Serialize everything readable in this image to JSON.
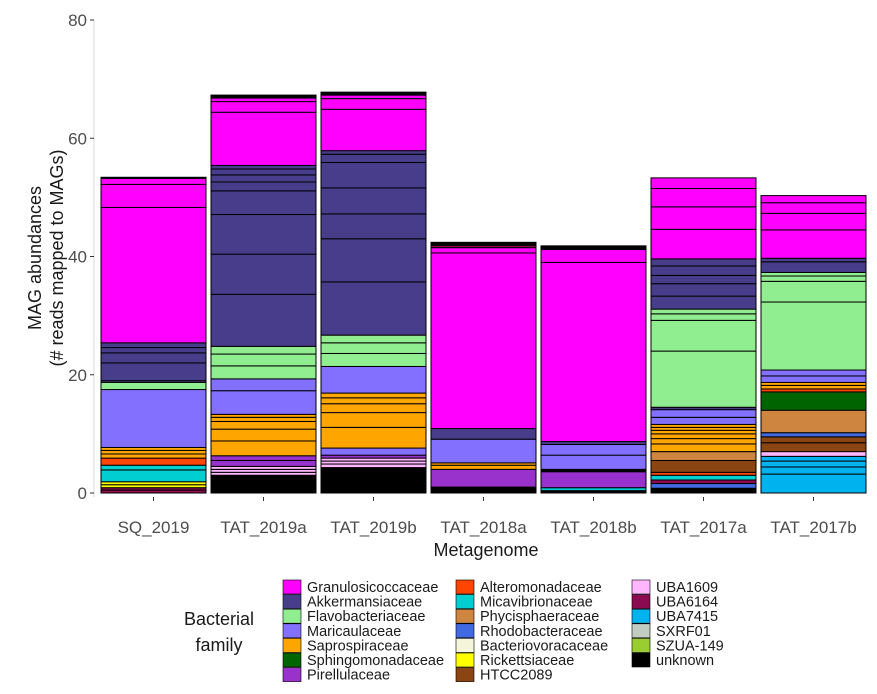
{
  "chart_data": {
    "type": "bar",
    "stacked": true,
    "xlabel": "Metagenome",
    "ylabel": [
      "MAG abundances",
      "(# reads mapped to MAGs)"
    ],
    "ylim": [
      0,
      80
    ],
    "yticks": [
      0,
      20,
      40,
      60,
      80
    ],
    "grid": false,
    "categories": [
      "SQ_2019",
      "TAT_2019a",
      "TAT_2019b",
      "TAT_2018a",
      "TAT_2018b",
      "TAT_2017a",
      "TAT_2017b"
    ],
    "legend": {
      "title": [
        "Bacterial",
        "family"
      ],
      "placement": "bottom",
      "entries": [
        {
          "name": "Granulosicoccaceae",
          "color": "#FF00FF"
        },
        {
          "name": "Akkermansiaceae",
          "color": "#483D8B"
        },
        {
          "name": "Flavobacteriaceae",
          "color": "#90EE90"
        },
        {
          "name": "Maricaulaceae",
          "color": "#8470FF"
        },
        {
          "name": "Saprospiraceae",
          "color": "#FFA500"
        },
        {
          "name": "Sphingomonadaceae",
          "color": "#006400"
        },
        {
          "name": "Pirellulaceae",
          "color": "#9932CC"
        },
        {
          "name": "Alteromonadaceae",
          "color": "#FF4500"
        },
        {
          "name": "Micavibrionaceae",
          "color": "#00CED1"
        },
        {
          "name": "Phycisphaeraceae",
          "color": "#CD853F"
        },
        {
          "name": "Rhodobacteraceae",
          "color": "#4169E1"
        },
        {
          "name": "Bacteriovoracaceae",
          "color": "#F5F5DC"
        },
        {
          "name": "Rickettsiaceae",
          "color": "#FFFF00"
        },
        {
          "name": "HTCC2089",
          "color": "#8B4513"
        },
        {
          "name": "UBA1609",
          "color": "#FFB6FF"
        },
        {
          "name": "UBA6164",
          "color": "#8B0A50"
        },
        {
          "name": "UBA7415",
          "color": "#00B2EE"
        },
        {
          "name": "SXRF01",
          "color": "#C1CDC1"
        },
        {
          "name": "SZUA-149",
          "color": "#9ACD32"
        },
        {
          "name": "unknown",
          "color": "#000000"
        }
      ]
    },
    "stacks": [
      [
        {
          "family": "UBA6164",
          "values": [
            0.5,
            0.4
          ]
        },
        {
          "family": "Rickettsiaceae",
          "values": [
            0.5,
            0.5
          ]
        },
        {
          "family": "Micavibrionaceae",
          "values": [
            2.0,
            0.8
          ]
        },
        {
          "family": "Alteromonadaceae",
          "values": [
            1.2
          ]
        },
        {
          "family": "Saprospiraceae",
          "values": [
            0.7,
            0.6,
            0.5
          ]
        },
        {
          "family": "Maricaulaceae",
          "values": [
            9.8
          ]
        },
        {
          "family": "Flavobacteriaceae",
          "values": [
            1.2
          ]
        },
        {
          "family": "Akkermansiaceae",
          "values": [
            0.3,
            3.0,
            1.7,
            0.9,
            0.8
          ]
        },
        {
          "family": "Granulosicoccaceae",
          "values": [
            22.9,
            3.9,
            1.0
          ]
        },
        {
          "family": "unknown",
          "values": [
            0.2
          ]
        }
      ],
      [
        {
          "family": "unknown",
          "values": [
            3.0
          ]
        },
        {
          "family": "UBA1609",
          "values": [
            0.5,
            0.5,
            0.5
          ]
        },
        {
          "family": "Pirellulaceae",
          "values": [
            1.0,
            0.8
          ]
        },
        {
          "family": "Saprospiraceae",
          "values": [
            2.5,
            2.0,
            1.3,
            0.7,
            0.5
          ]
        },
        {
          "family": "Maricaulaceae",
          "values": [
            4.0,
            2.0
          ]
        },
        {
          "family": "Flavobacteriaceae",
          "values": [
            2.2,
            2.0,
            1.3
          ]
        },
        {
          "family": "Akkermansiaceae",
          "values": [
            8.8,
            6.8,
            6.7,
            4.0,
            1.5,
            1.2,
            1.0,
            0.6
          ]
        },
        {
          "family": "Granulosicoccaceae",
          "values": [
            9.0,
            1.8,
            0.6
          ]
        },
        {
          "family": "unknown",
          "values": [
            0.5
          ]
        }
      ],
      [
        {
          "family": "unknown",
          "values": [
            4.3
          ]
        },
        {
          "family": "UBA1609",
          "values": [
            0.6,
            0.5,
            0.5
          ]
        },
        {
          "family": "Pirellulaceae",
          "values": [
            0.5
          ]
        },
        {
          "family": "Maricaulaceae",
          "values": [
            1.2
          ]
        },
        {
          "family": "Saprospiraceae",
          "values": [
            3.5,
            2.5,
            1.5,
            1.0,
            0.8
          ]
        },
        {
          "family": "Maricaulaceae",
          "values": [
            4.5
          ]
        },
        {
          "family": "Flavobacteriaceae",
          "values": [
            2.2,
            1.8,
            1.3
          ]
        },
        {
          "family": "Akkermansiaceae",
          "values": [
            9.0,
            7.3,
            4.2,
            4.4,
            4.3,
            1.4,
            0.6
          ]
        },
        {
          "family": "Granulosicoccaceae",
          "values": [
            7.0,
            1.8,
            0.6
          ]
        },
        {
          "family": "unknown",
          "values": [
            0.5
          ]
        }
      ],
      [
        {
          "family": "unknown",
          "values": [
            1.0
          ]
        },
        {
          "family": "Pirellulaceae",
          "values": [
            3.0
          ]
        },
        {
          "family": "Saprospiraceae",
          "values": [
            0.7,
            0.4
          ]
        },
        {
          "family": "Maricaulaceae",
          "values": [
            4.0
          ]
        },
        {
          "family": "Akkermansiaceae",
          "values": [
            1.8
          ]
        },
        {
          "family": "Granulosicoccaceae",
          "values": [
            29.7,
            0.9
          ]
        },
        {
          "family": "UBA6164",
          "values": [
            0.4
          ]
        },
        {
          "family": "unknown",
          "values": [
            0.5
          ]
        }
      ],
      [
        {
          "family": "unknown",
          "values": [
            0.4
          ]
        },
        {
          "family": "Micavibrionaceae",
          "values": [
            0.5
          ]
        },
        {
          "family": "Pirellulaceae",
          "values": [
            2.7
          ]
        },
        {
          "family": "unknown",
          "values": [
            0.4
          ]
        },
        {
          "family": "Maricaulaceae",
          "values": [
            2.4,
            1.8
          ]
        },
        {
          "family": "Akkermansiaceae",
          "values": [
            0.5
          ]
        },
        {
          "family": "Granulosicoccaceae",
          "values": [
            30.3,
            2.2
          ]
        },
        {
          "family": "unknown",
          "values": [
            0.6
          ]
        }
      ],
      [
        {
          "family": "unknown",
          "values": [
            0.8
          ]
        },
        {
          "family": "Rhodobacteraceae",
          "values": [
            0.8
          ]
        },
        {
          "family": "UBA6164",
          "values": [
            0.6
          ]
        },
        {
          "family": "Micavibrionaceae",
          "values": [
            0.8
          ]
        },
        {
          "family": "Alteromonadaceae",
          "values": [
            0.5
          ]
        },
        {
          "family": "HTCC2089",
          "values": [
            2.0
          ]
        },
        {
          "family": "Phycisphaeraceae",
          "values": [
            1.5
          ]
        },
        {
          "family": "Saprospiraceae",
          "values": [
            1.3,
            0.9,
            0.8,
            0.6,
            0.5,
            0.5
          ]
        },
        {
          "family": "Maricaulaceae",
          "values": [
            1.2,
            1.3
          ]
        },
        {
          "family": "Akkermansiaceae",
          "values": [
            0.4
          ]
        },
        {
          "family": "Flavobacteriaceae",
          "values": [
            9.5,
            5.2,
            1.1,
            0.8
          ]
        },
        {
          "family": "Akkermansiaceae",
          "values": [
            2.2,
            2.1,
            1.4,
            1.6,
            1.2
          ]
        },
        {
          "family": "Granulosicoccaceae",
          "values": [
            5.0,
            3.8,
            3.1,
            1.8
          ]
        }
      ],
      [
        {
          "family": "UBA7415",
          "values": [
            3.2,
            1.2,
            1.0,
            0.8
          ]
        },
        {
          "family": "UBA1609",
          "values": [
            0.8
          ]
        },
        {
          "family": "HTCC2089",
          "values": [
            1.5,
            1.0
          ]
        },
        {
          "family": "Rhodobacteraceae",
          "values": [
            0.7
          ]
        },
        {
          "family": "Phycisphaeraceae",
          "values": [
            3.8
          ]
        },
        {
          "family": "Sphingomonadaceae",
          "values": [
            3.1
          ]
        },
        {
          "family": "Alteromonadaceae",
          "values": [
            0.5
          ]
        },
        {
          "family": "Saprospiraceae",
          "values": [
            0.6,
            0.5
          ]
        },
        {
          "family": "Maricaulaceae",
          "values": [
            1.1,
            1.0
          ]
        },
        {
          "family": "Flavobacteriaceae",
          "values": [
            11.5,
            3.5,
            0.9,
            0.6
          ]
        },
        {
          "family": "Akkermansiaceae",
          "values": [
            1.8,
            0.6
          ]
        },
        {
          "family": "Granulosicoccaceae",
          "values": [
            4.8,
            2.8,
            1.8,
            1.2
          ]
        }
      ]
    ]
  }
}
